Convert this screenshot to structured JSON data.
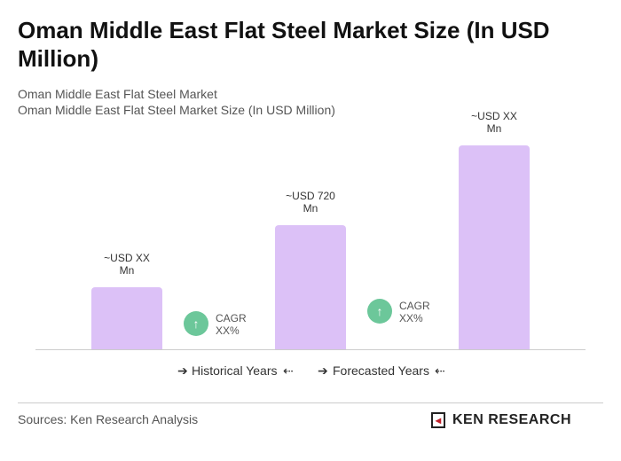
{
  "chart_data": {
    "type": "bar",
    "title": "Oman Middle East Flat Steel Market Size (In USD Million)",
    "subtitle": [
      "Oman Middle East Flat Steel Market",
      "Oman Middle East Flat Steel Market Size (In USD Million)"
    ],
    "categories": [
      null,
      null,
      null
    ],
    "values": [
      360,
      720,
      1183
    ],
    "value_labels": [
      "~USD XX Mn",
      "~USD 720 Mn",
      "~USD XX Mn"
    ],
    "color": "#dcc1f7",
    "annotations": [
      "CAGR XX%",
      "CAGR XX%"
    ],
    "annotation_color": "#6cc79a",
    "legend": [
      "Historical Years",
      "Forecasted Years"
    ],
    "source": "Sources: Ken Research Analysis",
    "logo": "KEN RESEARCH"
  }
}
